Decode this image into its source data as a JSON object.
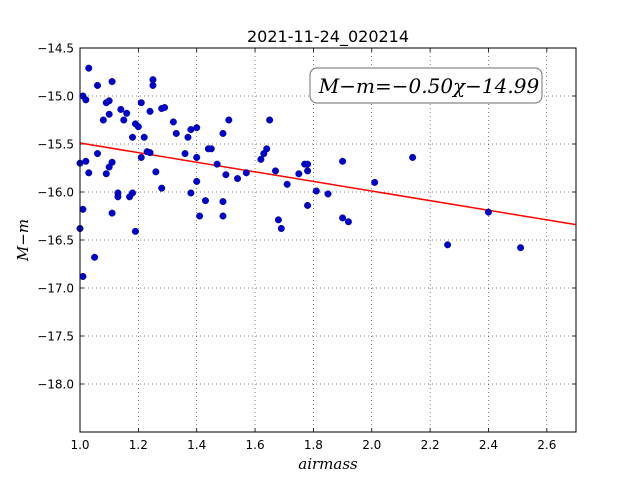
{
  "chart_data": {
    "type": "scatter",
    "title": "2021-11-24_020214",
    "xlabel": "airmass",
    "ylabel": "M−m",
    "xlim": [
      1.0,
      2.7
    ],
    "ylim": [
      -14.5,
      -18.5
    ],
    "y_inverted": true,
    "grid": true,
    "x_ticks": [
      "1.0",
      "1.2",
      "1.4",
      "1.6",
      "1.8",
      "2.0",
      "2.2",
      "2.4",
      "2.6"
    ],
    "y_ticks": [
      "−14.5",
      "−15.0",
      "−15.5",
      "−16.0",
      "−16.5",
      "−17.0",
      "−17.5",
      "−18.0"
    ],
    "annotation": "M−m=−0.50χ−14.99",
    "marker_color": "#0000cc",
    "fit_color": "#ff0000",
    "fit": {
      "slope": -0.5,
      "intercept": -14.99
    },
    "points": [
      [
        1.0,
        -15.7
      ],
      [
        1.0,
        -16.38
      ],
      [
        1.01,
        -16.18
      ],
      [
        1.01,
        -16.88
      ],
      [
        1.01,
        -15.0
      ],
      [
        1.02,
        -15.04
      ],
      [
        1.02,
        -15.68
      ],
      [
        1.03,
        -15.8
      ],
      [
        1.03,
        -14.71
      ],
      [
        1.05,
        -16.68
      ],
      [
        1.06,
        -14.89
      ],
      [
        1.06,
        -15.6
      ],
      [
        1.08,
        -15.25
      ],
      [
        1.09,
        -15.81
      ],
      [
        1.09,
        -15.07
      ],
      [
        1.1,
        -15.05
      ],
      [
        1.1,
        -15.19
      ],
      [
        1.1,
        -15.74
      ],
      [
        1.11,
        -15.69
      ],
      [
        1.11,
        -16.22
      ],
      [
        1.11,
        -14.85
      ],
      [
        1.13,
        -16.01
      ],
      [
        1.13,
        -16.05
      ],
      [
        1.14,
        -15.14
      ],
      [
        1.15,
        -15.25
      ],
      [
        1.16,
        -15.18
      ],
      [
        1.17,
        -16.05
      ],
      [
        1.18,
        -16.01
      ],
      [
        1.18,
        -15.43
      ],
      [
        1.19,
        -15.29
      ],
      [
        1.19,
        -16.41
      ],
      [
        1.2,
        -15.32
      ],
      [
        1.21,
        -15.07
      ],
      [
        1.21,
        -15.64
      ],
      [
        1.22,
        -15.43
      ],
      [
        1.23,
        -15.58
      ],
      [
        1.24,
        -15.16
      ],
      [
        1.24,
        -15.59
      ],
      [
        1.25,
        -14.83
      ],
      [
        1.25,
        -14.89
      ],
      [
        1.26,
        -15.79
      ],
      [
        1.28,
        -15.13
      ],
      [
        1.28,
        -15.96
      ],
      [
        1.29,
        -15.12
      ],
      [
        1.32,
        -15.27
      ],
      [
        1.33,
        -15.39
      ],
      [
        1.36,
        -15.6
      ],
      [
        1.37,
        -15.43
      ],
      [
        1.38,
        -15.35
      ],
      [
        1.38,
        -16.01
      ],
      [
        1.4,
        -15.33
      ],
      [
        1.4,
        -15.89
      ],
      [
        1.4,
        -15.64
      ],
      [
        1.41,
        -16.25
      ],
      [
        1.43,
        -16.09
      ],
      [
        1.44,
        -15.55
      ],
      [
        1.45,
        -15.55
      ],
      [
        1.47,
        -15.71
      ],
      [
        1.49,
        -15.39
      ],
      [
        1.49,
        -16.1
      ],
      [
        1.49,
        -16.25
      ],
      [
        1.5,
        -15.82
      ],
      [
        1.51,
        -15.25
      ],
      [
        1.54,
        -15.86
      ],
      [
        1.57,
        -15.8
      ],
      [
        1.62,
        -15.66
      ],
      [
        1.63,
        -15.6
      ],
      [
        1.64,
        -15.55
      ],
      [
        1.65,
        -15.25
      ],
      [
        1.67,
        -15.78
      ],
      [
        1.68,
        -16.29
      ],
      [
        1.69,
        -16.38
      ],
      [
        1.71,
        -15.92
      ],
      [
        1.75,
        -15.81
      ],
      [
        1.77,
        -15.71
      ],
      [
        1.78,
        -15.71
      ],
      [
        1.78,
        -15.78
      ],
      [
        1.78,
        -16.14
      ],
      [
        1.81,
        -15.99
      ],
      [
        1.85,
        -16.02
      ],
      [
        1.9,
        -16.27
      ],
      [
        1.9,
        -15.68
      ],
      [
        1.92,
        -16.31
      ],
      [
        2.01,
        -15.9
      ],
      [
        2.14,
        -15.64
      ],
      [
        2.26,
        -16.55
      ],
      [
        2.4,
        -16.21
      ],
      [
        2.51,
        -16.58
      ]
    ]
  }
}
